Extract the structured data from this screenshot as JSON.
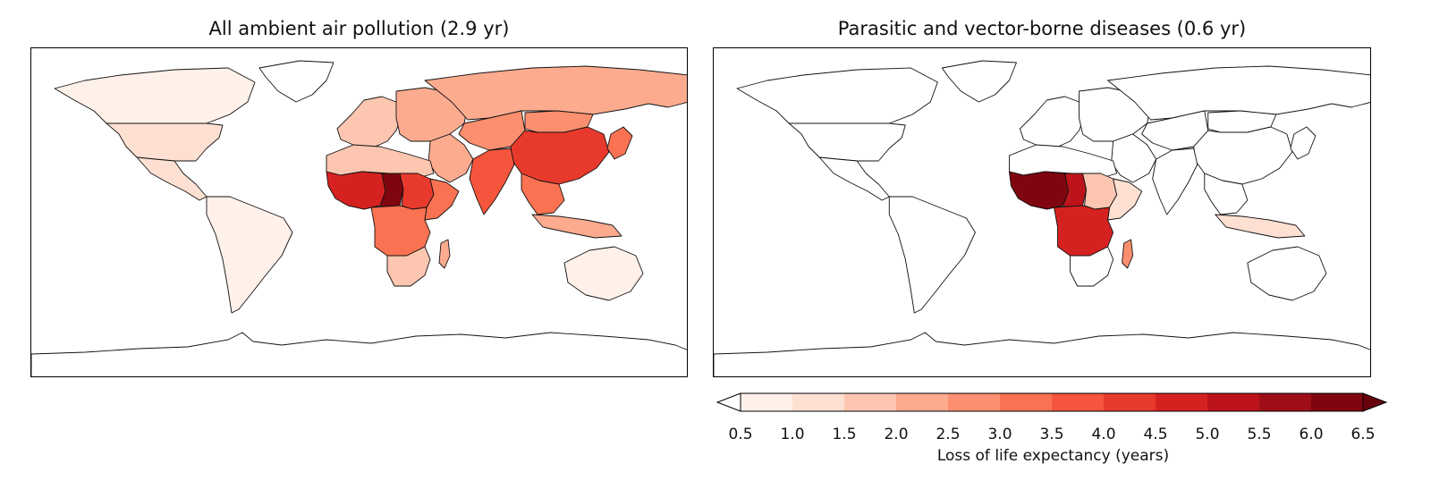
{
  "panels": [
    {
      "id": "air",
      "title": "All ambient air pollution (2.9 yr)",
      "region_levels": {
        "north_america_north": 0.6,
        "greenland": 0.3,
        "usa": 1.3,
        "mexico_central": 1.1,
        "south_america": 0.9,
        "europe_west": 1.7,
        "europe_east": 2.4,
        "russia": 2.3,
        "kazakh_central": 2.5,
        "middle_east": 2.2,
        "north_africa": 1.8,
        "sahel_west": 4.5,
        "chad_nigeria": 6.1,
        "sudan": 4.4,
        "horn_africa": 3.4,
        "central_africa": 3.2,
        "southern_africa": 1.7,
        "madagascar": 2.0,
        "india": 3.6,
        "china": 4.0,
        "mongolia": 2.8,
        "se_asia": 3.0,
        "indonesia": 2.2,
        "japan_korea": 3.2,
        "australia": 0.6,
        "antarctica": 0.1
      }
    },
    {
      "id": "parasitic",
      "title": "Parasitic and vector-borne diseases (0.6 yr)",
      "region_levels": {
        "north_america_north": 0.0,
        "greenland": 0.0,
        "usa": 0.0,
        "mexico_central": 0.0,
        "south_america": 0.0,
        "europe_west": 0.0,
        "europe_east": 0.0,
        "russia": 0.0,
        "kazakh_central": 0.0,
        "middle_east": 0.0,
        "north_africa": 0.0,
        "sahel_west": 6.2,
        "chad_nigeria": 5.4,
        "sudan": 1.6,
        "horn_africa": 1.2,
        "central_africa": 4.6,
        "southern_africa": 0.3,
        "madagascar": 2.6,
        "india": 0.0,
        "china": 0.0,
        "mongolia": 0.0,
        "se_asia": 0.0,
        "indonesia": 1.0,
        "japan_korea": 0.0,
        "australia": 0.0,
        "antarctica": 0.0
      }
    }
  ],
  "colorbar": {
    "label": "Loss of life expectancy (years)",
    "ticks": [
      "0.5",
      "1.0",
      "1.5",
      "2.0",
      "2.5",
      "3.0",
      "3.5",
      "4.0",
      "4.5",
      "5.0",
      "5.5",
      "6.0",
      "6.5"
    ],
    "colors": [
      "#fff0e9",
      "#fee0d2",
      "#fcc6b0",
      "#fcab8f",
      "#fc8f6f",
      "#fb7252",
      "#f5553c",
      "#e83a2c",
      "#d52221",
      "#bc141a",
      "#9f0e16",
      "#7f0610"
    ],
    "under_color": "#ffffff",
    "over_color": "#67000d"
  }
}
